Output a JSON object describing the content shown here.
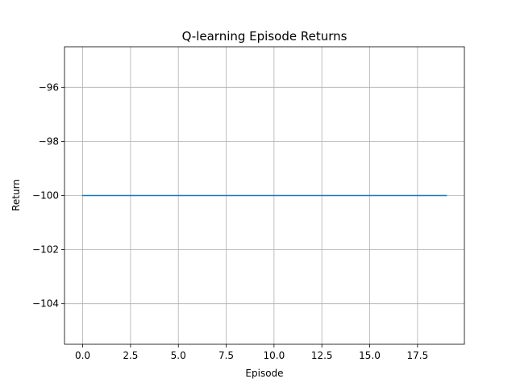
{
  "chart_data": {
    "type": "line",
    "title": "Q-learning Episode Returns",
    "xlabel": "Episode",
    "ylabel": "Return",
    "xlim": [
      -0.95,
      19.95
    ],
    "ylim": [
      -105.5,
      -94.5
    ],
    "xticks": [
      0.0,
      2.5,
      5.0,
      7.5,
      10.0,
      12.5,
      15.0,
      17.5
    ],
    "xtick_labels": [
      "0.0",
      "2.5",
      "5.0",
      "7.5",
      "10.0",
      "12.5",
      "15.0",
      "17.5"
    ],
    "yticks": [
      -104,
      -102,
      -100,
      -98,
      -96
    ],
    "ytick_labels": [
      "−104",
      "−102",
      "−100",
      "−98",
      "−96"
    ],
    "grid": true,
    "series": [
      {
        "color": "#1f77b4",
        "x": [
          0,
          1,
          2,
          3,
          4,
          5,
          6,
          7,
          8,
          9,
          10,
          11,
          12,
          13,
          14,
          15,
          16,
          17,
          18,
          19
        ],
        "y": [
          -100,
          -100,
          -100,
          -100,
          -100,
          -100,
          -100,
          -100,
          -100,
          -100,
          -100,
          -100,
          -100,
          -100,
          -100,
          -100,
          -100,
          -100,
          -100,
          -100
        ]
      }
    ]
  }
}
